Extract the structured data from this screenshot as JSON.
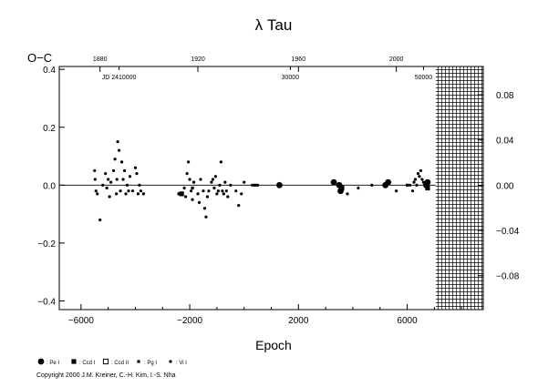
{
  "chart_data": {
    "type": "scatter",
    "title": "λ Tau",
    "xlabel": "Epoch",
    "ylabel": "O−C",
    "xlim": [
      -6800,
      8800
    ],
    "ylim": [
      -0.43,
      0.41
    ],
    "y2lim": [
      -0.11,
      0.105
    ],
    "x_ticks": [
      -6000,
      -2000,
      2000,
      6000
    ],
    "x_tick_labels": [
      "−6000",
      "−2000",
      "2000",
      "6000"
    ],
    "y_ticks": [
      -0.4,
      -0.2,
      0.0,
      0.2,
      0.4
    ],
    "y_tick_labels": [
      "−0.4",
      "−0.2",
      "0.0",
      "0.2",
      "0.4"
    ],
    "y2_ticks": [
      -0.08,
      -0.04,
      0.0,
      0.04,
      0.08
    ],
    "y2_tick_labels": [
      "−0.08",
      "−0.04",
      "0.00",
      "0.04",
      "0.08"
    ],
    "top_axis": {
      "year_ticks": [
        {
          "epoch": -5300,
          "label": "1880"
        },
        {
          "epoch": -1700,
          "label": "1920"
        },
        {
          "epoch": 2000,
          "label": "1960"
        },
        {
          "epoch": 5600,
          "label": "2000"
        }
      ],
      "jd_ticks": [
        {
          "epoch": -4600,
          "label": "JD 2410000"
        },
        {
          "epoch": 1700,
          "label": "30000"
        },
        {
          "epoch": 6600,
          "label": "50000"
        }
      ]
    },
    "hatched_region": {
      "x_from": 7050,
      "x_to": 8800
    },
    "grid": false,
    "legend_position": "bottom-left",
    "legend": [
      {
        "symbol": "circle-large",
        "label": ": Pe I"
      },
      {
        "symbol": "square",
        "label": ": Ccd I"
      },
      {
        "symbol": "square-open",
        "label": ": Ccd II"
      },
      {
        "symbol": "square-small",
        "label": ": Pg I"
      },
      {
        "symbol": "circle-small",
        "label": ": Vi I"
      }
    ],
    "series": [
      {
        "name": "Vi I",
        "points": [
          [
            -5500,
            0.05
          ],
          [
            -5480,
            0.02
          ],
          [
            -5450,
            -0.02
          ],
          [
            -5400,
            -0.03
          ],
          [
            -5300,
            -0.12
          ],
          [
            -5200,
            0.0
          ],
          [
            -5100,
            0.04
          ],
          [
            -5050,
            -0.01
          ],
          [
            -5000,
            0.02
          ],
          [
            -4950,
            -0.04
          ],
          [
            -4900,
            0.01
          ],
          [
            -4800,
            0.05
          ],
          [
            -4750,
            0.09
          ],
          [
            -4700,
            -0.03
          ],
          [
            -4680,
            0.02
          ],
          [
            -4650,
            0.15
          ],
          [
            -4600,
            0.12
          ],
          [
            -4550,
            -0.02
          ],
          [
            -4500,
            0.08
          ],
          [
            -4450,
            0.02
          ],
          [
            -4400,
            0.05
          ],
          [
            -4350,
            -0.03
          ],
          [
            -4300,
            0.0
          ],
          [
            -4250,
            -0.02
          ],
          [
            -4200,
            0.03
          ],
          [
            -4100,
            -0.02
          ],
          [
            -4000,
            0.06
          ],
          [
            -3950,
            0.04
          ],
          [
            -3900,
            -0.03
          ],
          [
            -3850,
            0.0
          ],
          [
            -3800,
            -0.02
          ],
          [
            -3700,
            -0.03
          ],
          [
            -2200,
            -0.01
          ],
          [
            -2150,
            -0.04
          ],
          [
            -2100,
            0.04
          ],
          [
            -2050,
            0.08
          ],
          [
            -2000,
            0.02
          ],
          [
            -1950,
            -0.02
          ],
          [
            -1900,
            -0.05
          ],
          [
            -1850,
            0.01
          ],
          [
            -1700,
            -0.03
          ],
          [
            -1650,
            -0.06
          ],
          [
            -1600,
            0.02
          ],
          [
            -1500,
            -0.02
          ],
          [
            -1450,
            -0.08
          ],
          [
            -1400,
            -0.11
          ],
          [
            -1350,
            -0.04
          ],
          [
            -1300,
            -0.02
          ],
          [
            -1200,
            0.01
          ],
          [
            -1150,
            0.02
          ],
          [
            -1100,
            -0.01
          ],
          [
            -1050,
            0.03
          ],
          [
            -1000,
            -0.03
          ],
          [
            -950,
            -0.02
          ],
          [
            -900,
            0.0
          ],
          [
            -850,
            0.08
          ],
          [
            -800,
            -0.02
          ],
          [
            -750,
            -0.03
          ],
          [
            -700,
            0.01
          ],
          [
            -650,
            -0.02
          ],
          [
            -600,
            -0.04
          ],
          [
            -500,
            0.0
          ],
          [
            -300,
            -0.02
          ],
          [
            -200,
            -0.07
          ],
          [
            -100,
            -0.03
          ],
          [
            0,
            0.01
          ],
          [
            300,
            0.0
          ],
          [
            500,
            0.0
          ],
          [
            3800,
            -0.03
          ],
          [
            4200,
            -0.01
          ],
          [
            4700,
            0.0
          ],
          [
            5600,
            -0.02
          ],
          [
            6100,
            0.0
          ],
          [
            6200,
            -0.02
          ],
          [
            6250,
            0.01
          ],
          [
            6300,
            0.02
          ],
          [
            6350,
            0.0
          ],
          [
            6400,
            0.04
          ],
          [
            6450,
            0.03
          ],
          [
            6500,
            0.05
          ],
          [
            6550,
            0.02
          ],
          [
            6600,
            0.01
          ]
        ]
      },
      {
        "name": "Pe I",
        "points": [
          [
            1300,
            0.0
          ],
          [
            3300,
            0.01
          ],
          [
            3500,
            0.0
          ],
          [
            3550,
            -0.02
          ],
          [
            5200,
            0.0
          ],
          [
            5300,
            0.01
          ],
          [
            6700,
            0.0
          ],
          [
            6750,
            0.01
          ]
        ]
      },
      {
        "name": "Ccd I",
        "points": [
          [
            -2300,
            -0.03
          ],
          [
            3600,
            -0.01
          ],
          [
            6750,
            -0.01
          ]
        ]
      },
      {
        "name": "Pg I",
        "points": [
          [
            -2400,
            -0.03
          ],
          [
            -1900,
            -0.01
          ],
          [
            400,
            0.0
          ],
          [
            6000,
            0.0
          ]
        ]
      }
    ]
  },
  "copyright": "Copyright 2000 J.M. Kreiner, C.-H. Kim, I.-S. Nha"
}
